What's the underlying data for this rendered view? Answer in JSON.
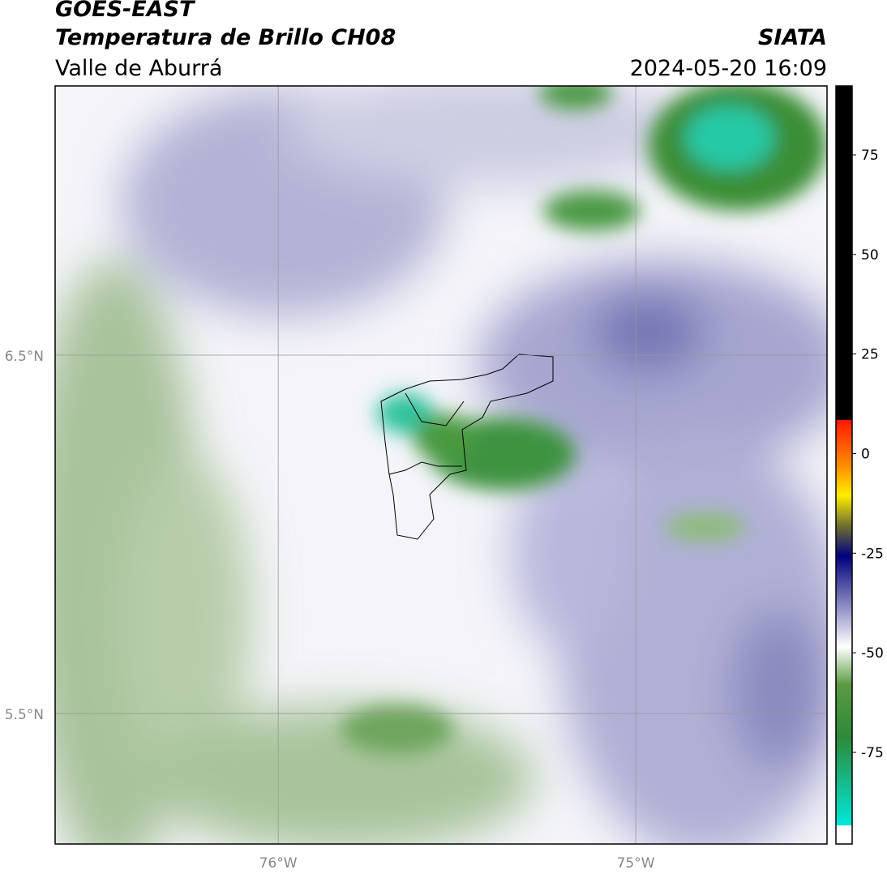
{
  "header": {
    "title": "GOES-EAST",
    "subtitle": "Temperatura de Brillo CH08",
    "region": "Valle de Aburrá",
    "source": "SIATA",
    "datetime": "2024-05-20 16:09"
  },
  "map": {
    "xlim": [
      -76.624,
      -74.465
    ],
    "ylim": [
      5.136,
      7.251
    ],
    "xticks": [
      {
        "value": -76,
        "label": "76°W"
      },
      {
        "value": -75,
        "label": "75°W"
      }
    ],
    "yticks": [
      {
        "value": 6.5,
        "label": "6.5°N"
      },
      {
        "value": 5.5,
        "label": "5.5°N"
      }
    ],
    "grid": true
  },
  "colorbar": {
    "lim": [
      -98,
      92.3
    ],
    "ticks": [
      75,
      50,
      25,
      0,
      -25,
      -50,
      -75
    ]
  }
}
